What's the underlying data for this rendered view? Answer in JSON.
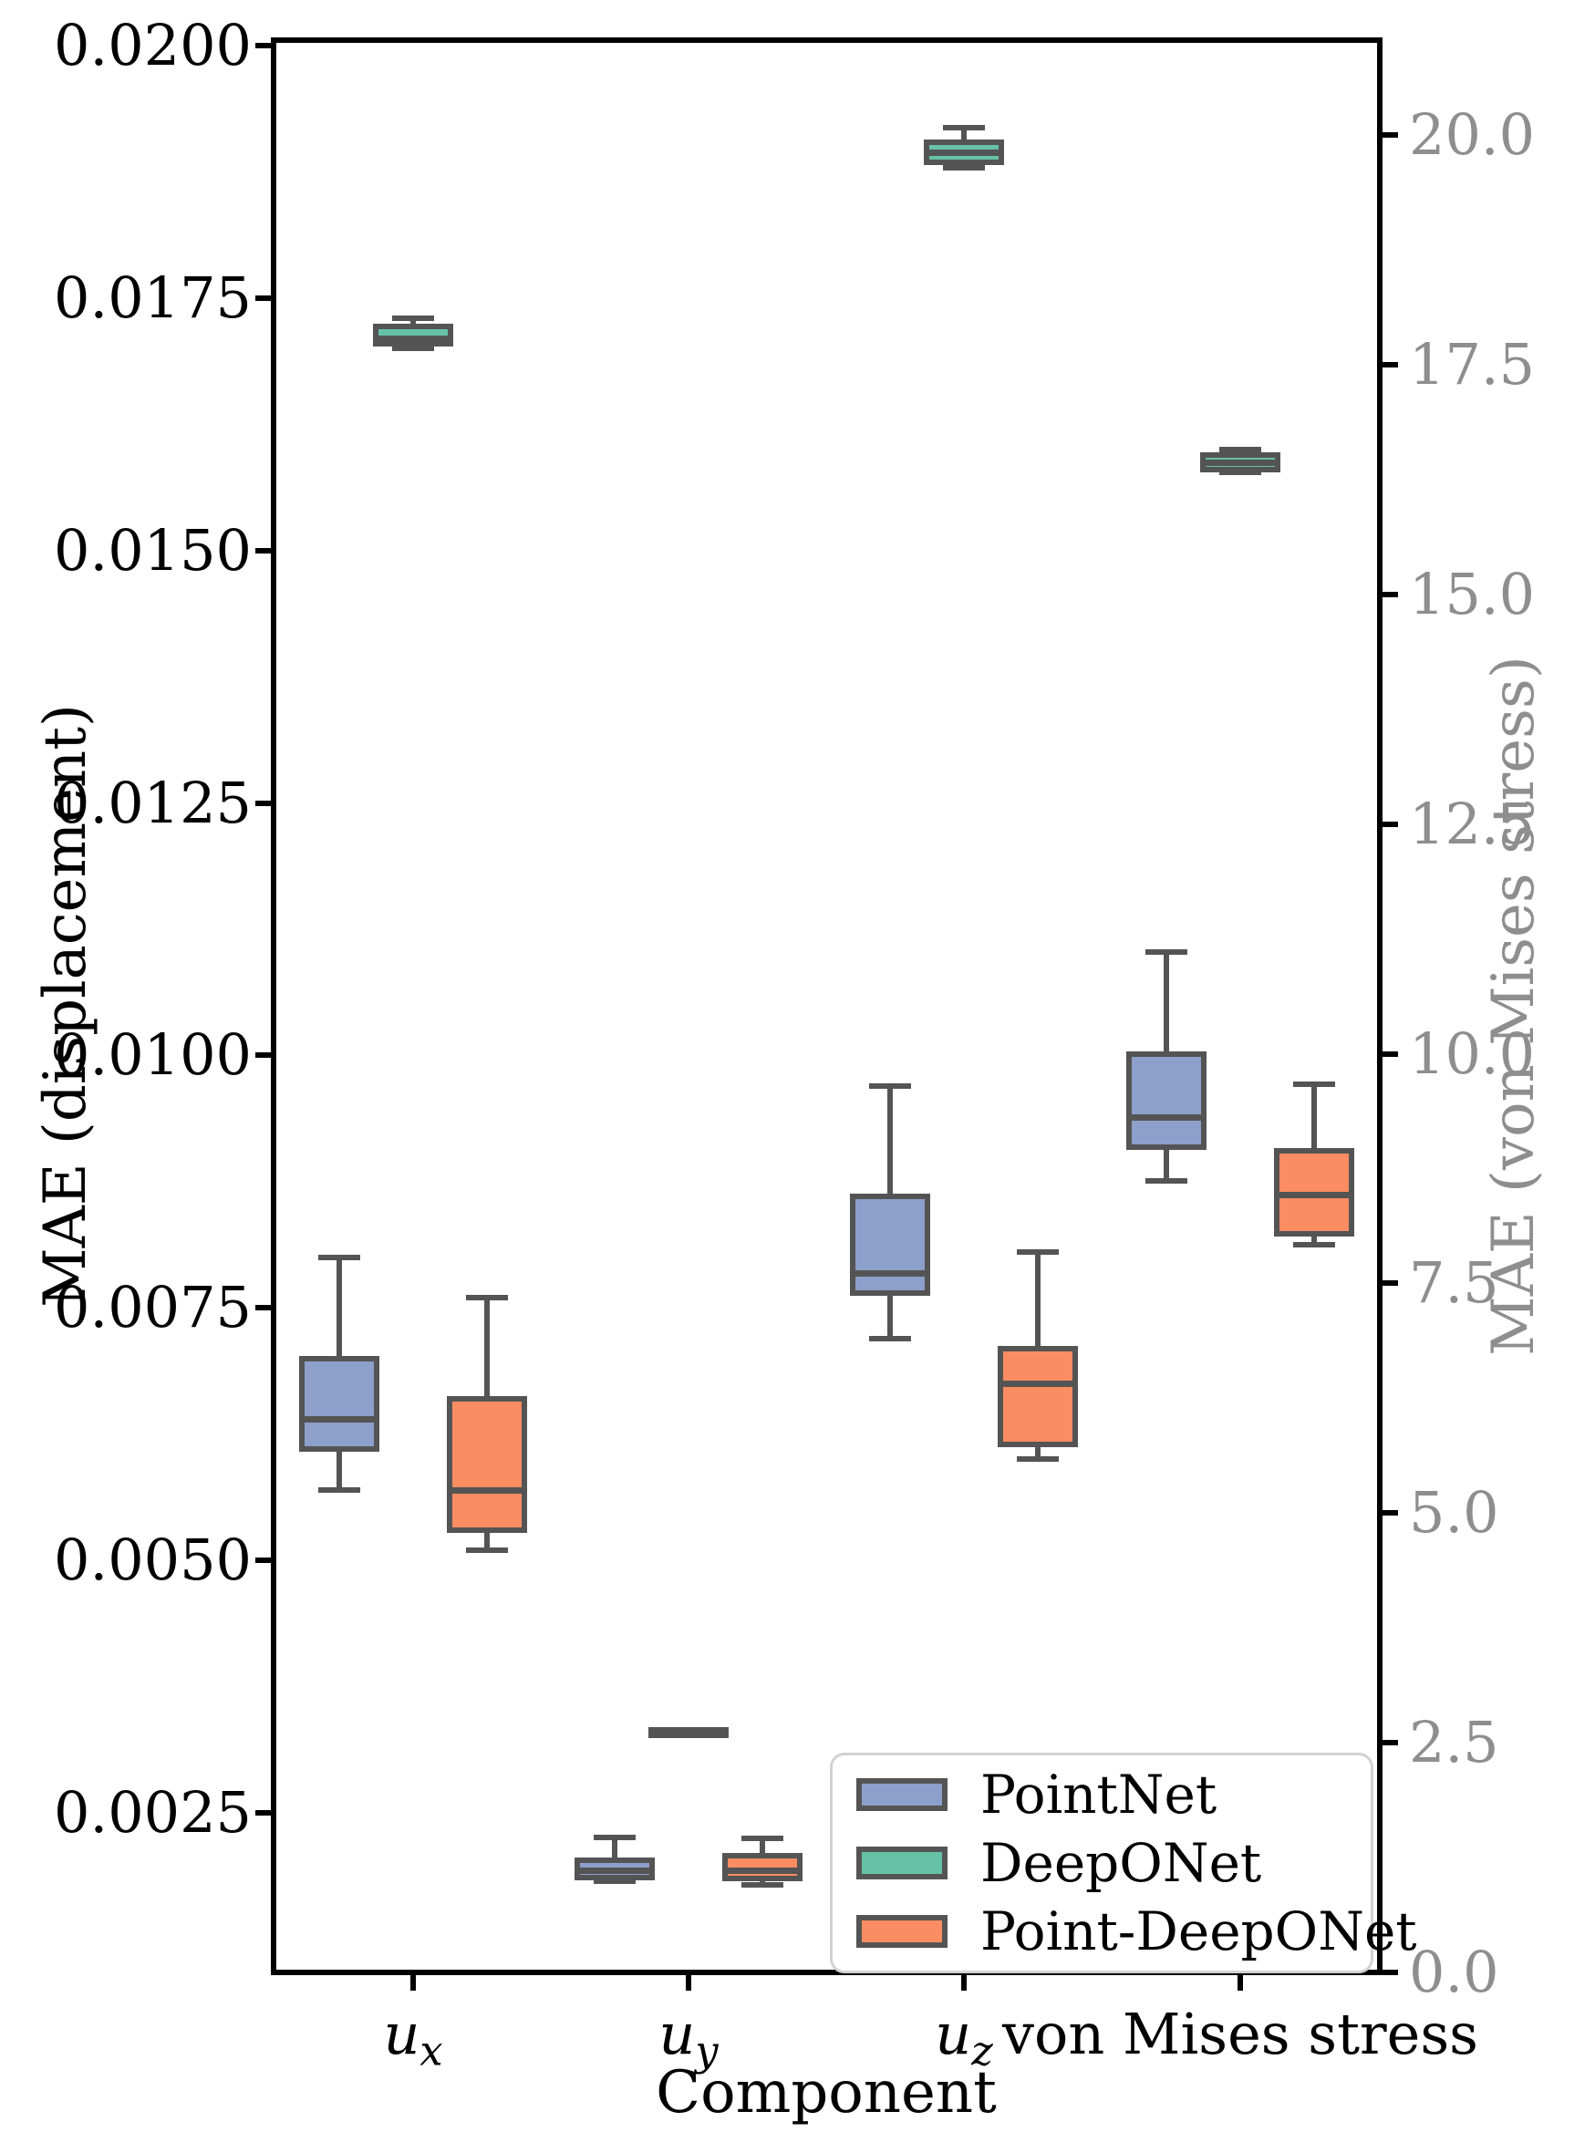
{
  "chart_data": {
    "type": "grouped_boxplot",
    "title": "",
    "xlabel": "Component",
    "grid": false,
    "legend_position": "lower right inside",
    "left_axis": {
      "label": "MAE (displacement)",
      "ylim": [
        0.00092,
        0.02005
      ],
      "ticks": [
        {
          "value": 0.02,
          "label": "0.0200"
        },
        {
          "value": 0.0175,
          "label": "0.0175"
        },
        {
          "value": 0.015,
          "label": "0.0150"
        },
        {
          "value": 0.0125,
          "label": "0.0125"
        },
        {
          "value": 0.01,
          "label": "0.0100"
        },
        {
          "value": 0.0075,
          "label": "0.0075"
        },
        {
          "value": 0.005,
          "label": "0.0050"
        },
        {
          "value": 0.0025,
          "label": "0.0025"
        }
      ]
    },
    "right_axis": {
      "label": "MAE (von Mises stress)",
      "ylim": [
        0.0,
        21.0
      ],
      "ticks": [
        {
          "value": 20.0,
          "label": "20.0"
        },
        {
          "value": 17.5,
          "label": "17.5"
        },
        {
          "value": 15.0,
          "label": "15.0"
        },
        {
          "value": 12.5,
          "label": "12.5"
        },
        {
          "value": 10.0,
          "label": "10.0"
        },
        {
          "value": 7.5,
          "label": "7.5"
        },
        {
          "value": 5.0,
          "label": "5.0"
        },
        {
          "value": 2.5,
          "label": "2.5"
        },
        {
          "value": 0.0,
          "label": "0.0"
        }
      ]
    },
    "categories": [
      {
        "main": "u",
        "sub": "x"
      },
      {
        "main": "u",
        "sub": "y"
      },
      {
        "main": "u",
        "sub": "z"
      },
      {
        "main": "von Mises stress",
        "sub": ""
      }
    ],
    "style": {
      "edge_color": "#545454",
      "spine_color": "#000000",
      "right_text_color": "#8e8e8e",
      "legend_border_color": "#d2d2d2"
    },
    "series": [
      {
        "name": "PointNet",
        "color": "#8da0cb",
        "boxes": [
          {
            "category": "u_x",
            "axis": "left",
            "whislo": 0.0057,
            "q1": 0.0061,
            "med": 0.0064,
            "q3": 0.007,
            "whishi": 0.008
          },
          {
            "category": "u_y",
            "axis": "left",
            "whislo": 0.00182,
            "q1": 0.00186,
            "med": 0.00193,
            "q3": 0.00203,
            "whishi": 0.00226
          },
          {
            "category": "u_z",
            "axis": "left",
            "whislo": 0.0072,
            "q1": 0.00765,
            "med": 0.00785,
            "q3": 0.0086,
            "whishi": 0.0097
          },
          {
            "category": "von Mises stress",
            "axis": "right",
            "whislo": 8.62,
            "q1": 8.98,
            "med": 9.31,
            "q3": 10.0,
            "whishi": 11.11
          }
        ]
      },
      {
        "name": "DeepONet",
        "color": "#66c2a5",
        "boxes": [
          {
            "category": "u_x",
            "axis": "left",
            "whislo": 0.017,
            "q1": 0.01705,
            "med": 0.0171,
            "q3": 0.01722,
            "whishi": 0.0173
          },
          {
            "category": "u_y",
            "axis": "left",
            "whislo": 0.0033,
            "q1": 0.0033,
            "med": 0.00331,
            "q3": 0.00332,
            "whishi": 0.00332
          },
          {
            "category": "u_z",
            "axis": "left",
            "whislo": 0.01879,
            "q1": 0.01884,
            "med": 0.01894,
            "q3": 0.01904,
            "whishi": 0.01919
          },
          {
            "category": "von Mises stress",
            "axis": "right",
            "whislo": 16.33,
            "q1": 16.36,
            "med": 16.44,
            "q3": 16.52,
            "whishi": 16.58
          }
        ]
      },
      {
        "name": "Point-DeepONet",
        "color": "#fc8d62",
        "boxes": [
          {
            "category": "u_x",
            "axis": "left",
            "whislo": 0.0051,
            "q1": 0.0053,
            "med": 0.0057,
            "q3": 0.0066,
            "whishi": 0.0076
          },
          {
            "category": "u_y",
            "axis": "left",
            "whislo": 0.00179,
            "q1": 0.00185,
            "med": 0.00193,
            "q3": 0.00208,
            "whishi": 0.00225
          },
          {
            "category": "u_z",
            "axis": "left",
            "whislo": 0.006,
            "q1": 0.00615,
            "med": 0.00675,
            "q3": 0.0071,
            "whishi": 0.00805
          },
          {
            "category": "von Mises stress",
            "axis": "right",
            "whislo": 7.92,
            "q1": 8.04,
            "med": 8.47,
            "q3": 8.94,
            "whishi": 9.67
          }
        ]
      }
    ]
  }
}
